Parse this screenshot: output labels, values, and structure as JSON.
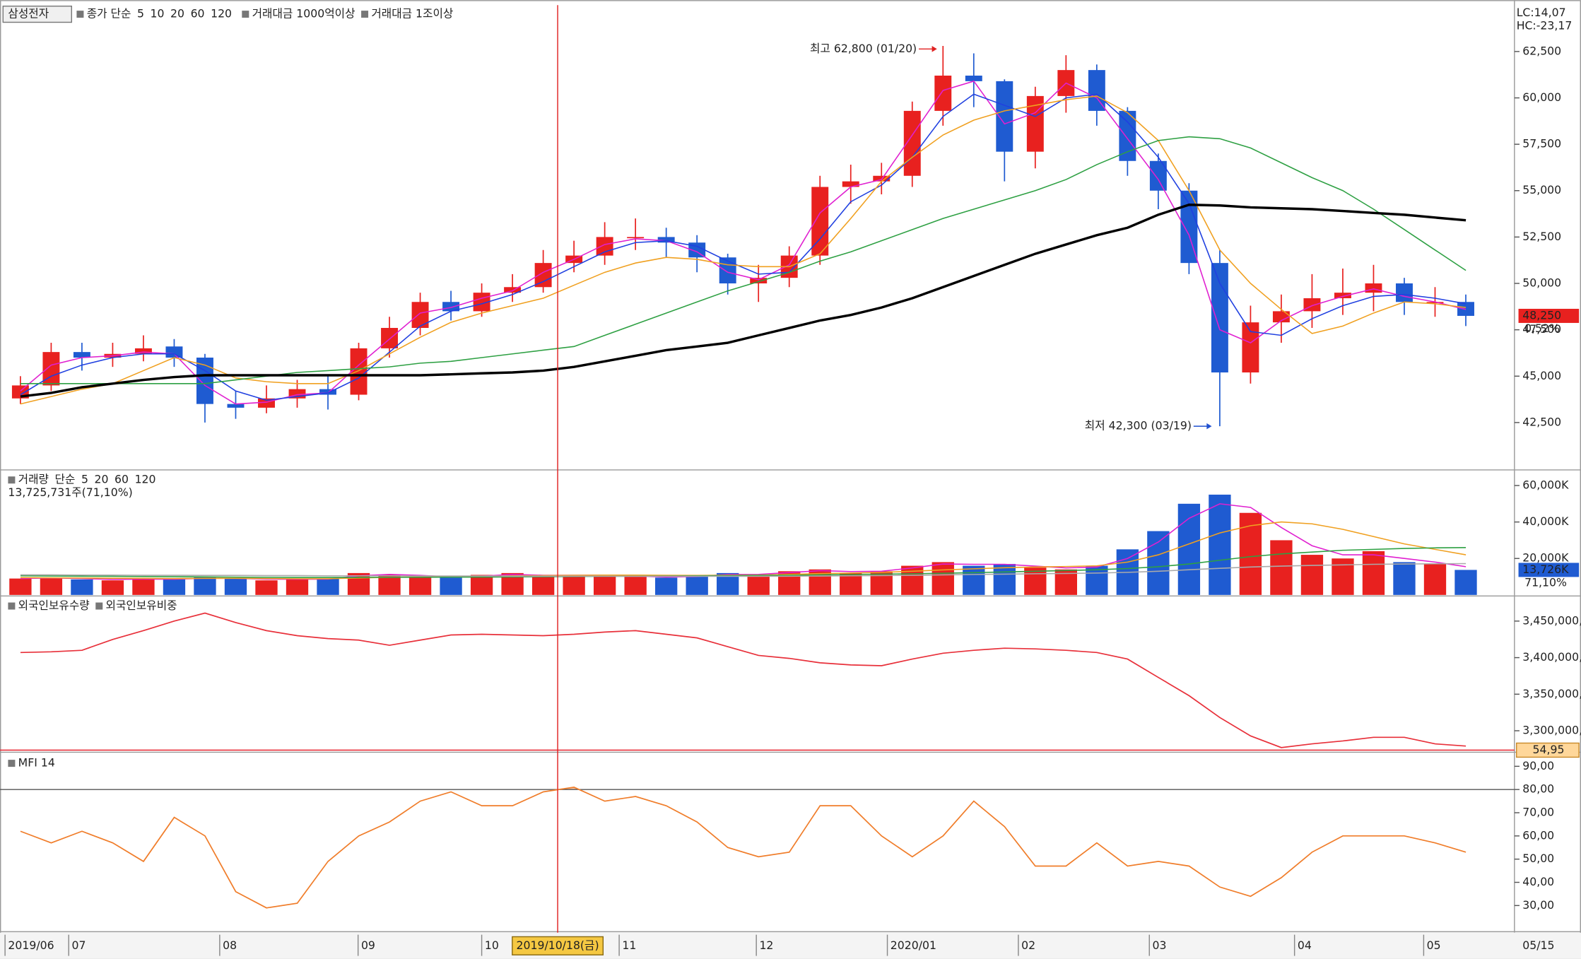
{
  "x_axis": {
    "xlim": [
      -0.5,
      47.5
    ],
    "xticks": [
      {
        "value": -0.5,
        "label": "2019/06"
      },
      {
        "value": 1.57,
        "label": "07"
      },
      {
        "value": 6.48,
        "label": "08"
      },
      {
        "value": 10.98,
        "label": "09"
      },
      {
        "value": 15.0,
        "label": "10"
      },
      {
        "value": 19.47,
        "label": "11"
      },
      {
        "value": 23.93,
        "label": "12"
      },
      {
        "value": 28.19,
        "label": "2020/01"
      },
      {
        "value": 32.45,
        "label": "02"
      },
      {
        "value": 36.71,
        "label": "03"
      },
      {
        "value": 41.43,
        "label": "04"
      },
      {
        "value": 45.63,
        "label": "05"
      }
    ],
    "end_label": "05/15",
    "cursor": {
      "value": 17.47,
      "label": "2019/10/18(금)"
    }
  },
  "chart_data": [
    {
      "type": "candlestick",
      "name": "삼성전자",
      "legend": [
        {
          "name": "종가 단순",
          "color": "#d020c0"
        }
      ],
      "signals": [
        {
          "name": "거래대금 1000억이상",
          "color": "#7fb21a"
        },
        {
          "name": "거래대금 1조이상",
          "color": "#8b3a0f"
        }
      ],
      "up_color": "#e8211f",
      "down_color": "#1f5bd1",
      "open": [
        43800,
        44500,
        46300,
        46000,
        46200,
        46600,
        46000,
        43500,
        43300,
        43800,
        44300,
        44000,
        46500,
        47600,
        49000,
        48500,
        49500,
        49800,
        51100,
        51500,
        52500,
        52500,
        52200,
        51400,
        50000,
        50300,
        51500,
        55200,
        55500,
        55800,
        59300,
        61200,
        60900,
        57100,
        60100,
        61500,
        59300,
        56600,
        55000,
        51100,
        45200,
        47900,
        48500,
        49200,
        49500,
        50000,
        49000,
        49000
      ],
      "high": [
        45000,
        46800,
        46800,
        46800,
        47200,
        47000,
        46200,
        44200,
        44500,
        44800,
        45000,
        46800,
        48200,
        49500,
        49600,
        50000,
        50500,
        51800,
        52300,
        53300,
        53500,
        53000,
        52600,
        51600,
        51000,
        52000,
        55800,
        56400,
        56500,
        59800,
        62800,
        62400,
        61000,
        60600,
        62300,
        61800,
        59500,
        57000,
        55400,
        51800,
        48800,
        49400,
        50500,
        50800,
        51000,
        50300,
        49800,
        49400
      ],
      "low": [
        43500,
        44200,
        45300,
        45500,
        45800,
        45500,
        42500,
        42700,
        43000,
        43300,
        43200,
        43700,
        46000,
        47200,
        48000,
        48200,
        49000,
        49500,
        50600,
        51000,
        51800,
        51400,
        50600,
        49400,
        49000,
        49800,
        51000,
        54300,
        54800,
        55200,
        58500,
        59500,
        55500,
        56200,
        59200,
        58500,
        55800,
        54000,
        50500,
        42300,
        44600,
        46800,
        47600,
        48300,
        48500,
        48300,
        48200,
        47700
      ],
      "close": [
        44500,
        46300,
        46000,
        46200,
        46500,
        46000,
        43500,
        43300,
        43800,
        44300,
        44000,
        46500,
        47600,
        49000,
        48500,
        49500,
        49800,
        51100,
        51500,
        52500,
        52500,
        52200,
        51400,
        50000,
        50300,
        51500,
        55200,
        55500,
        55800,
        59300,
        61200,
        60900,
        57100,
        60100,
        61500,
        59300,
        56600,
        55000,
        51100,
        45200,
        47900,
        48500,
        49200,
        49500,
        50000,
        49000,
        49000,
        48250
      ],
      "series": [
        {
          "name": "5",
          "color": "#e020d0",
          "values": [
            44200,
            45600,
            46000,
            46100,
            46300,
            46200,
            44500,
            43500,
            43600,
            44000,
            44100,
            45600,
            47000,
            48400,
            48700,
            49200,
            49600,
            50600,
            51300,
            52100,
            52400,
            52300,
            51700,
            50600,
            50200,
            51000,
            53800,
            55200,
            55600,
            58000,
            60400,
            60900,
            58600,
            59200,
            60800,
            60000,
            57800,
            55600,
            52600,
            47500,
            46800,
            48000,
            48800,
            49300,
            49700,
            49300,
            49000,
            48600
          ]
        },
        {
          "name": "10",
          "color": "#2040e0",
          "values": [
            44000,
            45000,
            45600,
            46000,
            46200,
            46200,
            45300,
            44200,
            43700,
            43900,
            44100,
            44900,
            46300,
            47700,
            48500,
            48900,
            49400,
            50100,
            50900,
            51700,
            52200,
            52300,
            52000,
            51200,
            50500,
            50600,
            52400,
            54400,
            55300,
            56800,
            59000,
            60200,
            59600,
            59000,
            60000,
            60200,
            58700,
            56800,
            54300,
            50000,
            47400,
            47200,
            48100,
            48800,
            49300,
            49400,
            49200,
            48900
          ]
        },
        {
          "name": "20",
          "color": "#f0a020",
          "values": [
            43500,
            43900,
            44300,
            44600,
            45300,
            46000,
            45600,
            44900,
            44700,
            44600,
            44600,
            45300,
            46200,
            47100,
            47900,
            48400,
            48800,
            49200,
            49900,
            50600,
            51100,
            51400,
            51300,
            51000,
            50900,
            50900,
            51600,
            53500,
            55500,
            56800,
            58000,
            58800,
            59300,
            59600,
            59900,
            60100,
            59200,
            57700,
            55000,
            51800,
            50000,
            48600,
            47300,
            47700,
            48400,
            49000,
            48900,
            48700
          ]
        },
        {
          "name": "60",
          "color": "#2ea043",
          "values": [
            44600,
            44600,
            44600,
            44600,
            44600,
            44600,
            44600,
            44800,
            45000,
            45200,
            45300,
            45400,
            45500,
            45700,
            45800,
            46000,
            46200,
            46400,
            46600,
            47200,
            47800,
            48400,
            49000,
            49600,
            50100,
            50600,
            51200,
            51700,
            52300,
            52900,
            53500,
            54000,
            54500,
            55000,
            55600,
            56400,
            57100,
            57700,
            57900,
            57800,
            57300,
            56500,
            55700,
            55000,
            54000,
            52900,
            51800,
            50700
          ]
        },
        {
          "name": "120",
          "color": "#000000",
          "values": [
            43900,
            44100,
            44400,
            44600,
            44800,
            44950,
            45050,
            45050,
            45050,
            45050,
            45050,
            45050,
            45050,
            45050,
            45100,
            45150,
            45200,
            45300,
            45500,
            45800,
            46100,
            46400,
            46600,
            46800,
            47200,
            47600,
            48000,
            48300,
            48700,
            49200,
            49800,
            50400,
            51000,
            51600,
            52100,
            52600,
            53000,
            53700,
            54240,
            54200,
            54100,
            54050,
            54000,
            53900,
            53800,
            53700,
            53550,
            53400
          ]
        }
      ],
      "high_label": "최고 62,800 (01/20)",
      "low_label": "최저 42,300 (03/19)",
      "lc": "LC:14,07",
      "hc": "HC:-23,17",
      "last_label": "48,250",
      "change_label": "0,52%",
      "ylim": [
        40000,
        65000
      ],
      "yticks": [
        {
          "value": 42500,
          "label": "42,500"
        },
        {
          "value": 45000,
          "label": "45,000"
        },
        {
          "value": 47500,
          "label": "47,500"
        },
        {
          "value": 50000,
          "label": "50,000"
        },
        {
          "value": 52500,
          "label": "52,500"
        },
        {
          "value": 55000,
          "label": "55,000"
        },
        {
          "value": 57500,
          "label": "57,500"
        },
        {
          "value": 60000,
          "label": "60,000"
        },
        {
          "value": 62500,
          "label": "62,500"
        }
      ]
    },
    {
      "type": "bar",
      "legend": [
        {
          "name": "거래량",
          "color": "#1a9a9a"
        },
        {
          "name": "단순",
          "color": "#d020c0"
        }
      ],
      "subtitle": "13,725,731주(71,10%)",
      "values": [
        9000,
        9500,
        8500,
        8000,
        9000,
        8500,
        10000,
        9000,
        8000,
        8500,
        9000,
        12000,
        11000,
        10000,
        9500,
        11000,
        12000,
        10000,
        11000,
        11000,
        10000,
        9500,
        10500,
        12000,
        11000,
        13000,
        14000,
        12000,
        13000,
        16000,
        18000,
        16000,
        17000,
        15000,
        14000,
        16000,
        25000,
        35000,
        50000,
        55000,
        45000,
        30000,
        22000,
        20000,
        24000,
        18000,
        17000,
        13726
      ],
      "series": [
        {
          "name": "5",
          "color": "#e020d0",
          "values": [
            9000,
            9300,
            9000,
            8500,
            8700,
            8600,
            9200,
            9100,
            8700,
            8600,
            8700,
            10500,
            11300,
            10700,
            9900,
            10300,
            11300,
            10800,
            10800,
            10900,
            10400,
            9800,
            10100,
            11200,
            11300,
            12300,
            13300,
            12800,
            13000,
            14800,
            17000,
            16800,
            16800,
            15800,
            14800,
            15300,
            20000,
            29000,
            42000,
            50000,
            48000,
            37000,
            27000,
            22000,
            22000,
            20000,
            18000,
            15500
          ]
        },
        {
          "name": "20",
          "color": "#f0a020",
          "values": [
            9500,
            9400,
            9300,
            9200,
            9100,
            9000,
            9100,
            9100,
            9000,
            8900,
            8900,
            9300,
            9700,
            9900,
            10000,
            10200,
            10500,
            10600,
            10800,
            10900,
            10900,
            10800,
            10700,
            10800,
            10900,
            11300,
            11700,
            12000,
            12400,
            13000,
            13700,
            14300,
            14900,
            15300,
            15600,
            16000,
            18000,
            22000,
            28000,
            34000,
            38000,
            40000,
            39000,
            36000,
            32000,
            28000,
            25000,
            22000
          ]
        },
        {
          "name": "60",
          "color": "#2ea043",
          "values": [
            10500,
            10400,
            10300,
            10200,
            10100,
            10000,
            9900,
            9800,
            9700,
            9600,
            9600,
            9600,
            9700,
            9700,
            9800,
            9800,
            9900,
            10000,
            10100,
            10200,
            10300,
            10400,
            10500,
            10600,
            10700,
            10800,
            11000,
            11200,
            11400,
            11600,
            11900,
            12200,
            12600,
            13000,
            13400,
            13800,
            14500,
            15500,
            17000,
            19000,
            21000,
            22500,
            23500,
            24500,
            25000,
            25500,
            25800,
            26000
          ]
        },
        {
          "name": "120",
          "color": "#aaaaaa",
          "values": [
            11000,
            11000,
            10900,
            10900,
            10800,
            10800,
            10700,
            10700,
            10600,
            10600,
            10500,
            10500,
            10500,
            10400,
            10400,
            10400,
            10300,
            10300,
            10300,
            10300,
            10200,
            10200,
            10200,
            10200,
            10200,
            10300,
            10400,
            10500,
            10600,
            10800,
            11000,
            11200,
            11400,
            11600,
            11800,
            12000,
            12400,
            13000,
            13800,
            14600,
            15300,
            15800,
            16200,
            16500,
            16800,
            17000,
            17100,
            17200
          ]
        }
      ],
      "last_label": "13,726K",
      "ratio_label": "71,10%",
      "ylim": [
        0,
        68000
      ],
      "yticks": [
        {
          "value": 20000,
          "label": "20,000K"
        },
        {
          "value": 40000,
          "label": "40,000K"
        },
        {
          "value": 60000,
          "label": "60,000K"
        }
      ]
    },
    {
      "type": "line",
      "legend": [
        {
          "name": "외국인보유수량",
          "color": "#6a2aa0"
        },
        {
          "name": "외국인보유비중",
          "color": "#e8303a"
        }
      ],
      "color": "#e8303a",
      "values": [
        3407000,
        3408000,
        3410000,
        3425000,
        3437000,
        3450000,
        3461000,
        3448000,
        3437000,
        3430000,
        3426000,
        3424000,
        3417000,
        3424000,
        3431000,
        3432000,
        3431000,
        3430000,
        3432000,
        3435000,
        3437000,
        3432000,
        3427000,
        3415000,
        3403000,
        3399000,
        3393000,
        3390000,
        3389000,
        3398000,
        3406000,
        3410000,
        3413000,
        3412000,
        3410000,
        3407000,
        3398000,
        3373000,
        3348000,
        3318000,
        3293000,
        3277000,
        3282000,
        3286000,
        3291000,
        3291000,
        3282000,
        3279000
      ],
      "last_label": "54,95",
      "ylim": [
        3272000,
        3483000
      ],
      "yticks": [
        {
          "value": 3300000,
          "label": "3,300,000,"
        },
        {
          "value": 3350000,
          "label": "3,350,000,"
        },
        {
          "value": 3400000,
          "label": "3,400,000,"
        },
        {
          "value": 3450000,
          "label": "3,450,000,"
        }
      ]
    },
    {
      "type": "line",
      "legend": [
        {
          "name": "MFI 14",
          "color": "#f07d2a"
        }
      ],
      "color": "#f07d2a",
      "values": [
        62,
        57,
        62,
        57,
        49,
        68,
        60,
        36,
        29,
        31,
        49,
        60,
        66,
        75,
        79,
        73,
        73,
        79,
        81,
        75,
        77,
        73,
        66,
        55,
        51,
        53,
        73,
        73,
        60,
        51,
        60,
        75,
        64,
        47,
        47,
        57,
        47,
        49,
        47,
        38,
        34,
        42,
        53,
        60,
        60,
        60,
        57,
        53
      ],
      "overbought": 80,
      "ylim": [
        19.6,
        95.2
      ],
      "yticks": [
        {
          "value": 30,
          "label": "30,00"
        },
        {
          "value": 40,
          "label": "40,00"
        },
        {
          "value": 50,
          "label": "50,00"
        },
        {
          "value": 60,
          "label": "60,00"
        },
        {
          "value": 70,
          "label": "70,00"
        },
        {
          "value": 80,
          "label": "80,00"
        },
        {
          "value": 90,
          "label": "90,00"
        }
      ]
    }
  ]
}
